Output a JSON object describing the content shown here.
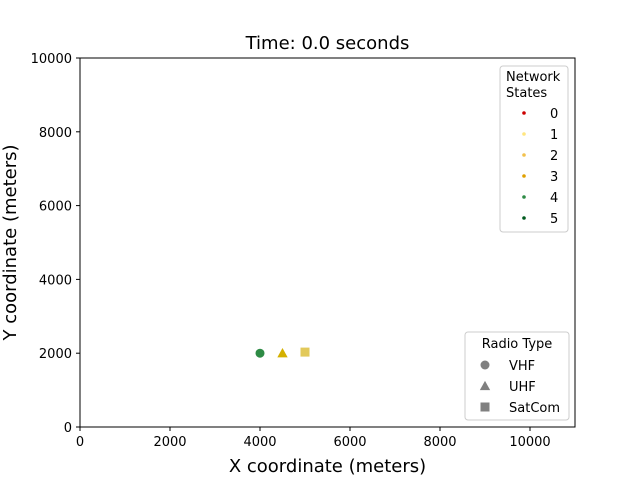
{
  "chart_data": {
    "type": "scatter",
    "title": "Time: 0.0 seconds",
    "xlabel": "X coordinate (meters)",
    "ylabel": "Y coordinate (meters)",
    "xlim": [
      0,
      11000
    ],
    "ylim": [
      0,
      10000
    ],
    "xticks": [
      0,
      2000,
      4000,
      6000,
      8000,
      10000
    ],
    "yticks": [
      0,
      2000,
      4000,
      6000,
      8000,
      10000
    ],
    "grid": false,
    "points": [
      {
        "x": 4000,
        "y": 2000,
        "radio": "VHF",
        "state": 4,
        "color": "#2e8b45"
      },
      {
        "x": 4500,
        "y": 2000,
        "radio": "UHF",
        "state": 3,
        "color": "#d4b000"
      },
      {
        "x": 5000,
        "y": 2030,
        "radio": "SatCom",
        "state": 2,
        "color": "#e2c95a"
      }
    ],
    "legends": [
      {
        "title_lines": [
          "Network",
          "States"
        ],
        "placement": "top-right",
        "entries": [
          {
            "label": "0",
            "color": "#cc0000"
          },
          {
            "label": "1",
            "color": "#ffe680"
          },
          {
            "label": "2",
            "color": "#f2c14e"
          },
          {
            "label": "3",
            "color": "#e0a000"
          },
          {
            "label": "4",
            "color": "#2e8b45"
          },
          {
            "label": "5",
            "color": "#005a1e"
          }
        ]
      },
      {
        "title": "Radio Type",
        "placement": "bottom-right",
        "entries": [
          {
            "label": "VHF",
            "marker": "circle",
            "color": "#808080"
          },
          {
            "label": "UHF",
            "marker": "triangle",
            "color": "#808080"
          },
          {
            "label": "SatCom",
            "marker": "square",
            "color": "#808080"
          }
        ]
      }
    ]
  }
}
